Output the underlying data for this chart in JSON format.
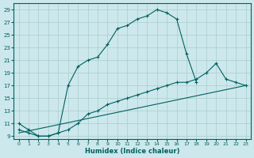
{
  "xlabel": "Humidex (Indice chaleur)",
  "bg_color": "#cce8ec",
  "grid_color": "#aacccc",
  "line_color": "#006060",
  "xlim": [
    -0.5,
    23.5
  ],
  "ylim": [
    8.5,
    30
  ],
  "yticks": [
    9,
    11,
    13,
    15,
    17,
    19,
    21,
    23,
    25,
    27,
    29
  ],
  "xticks": [
    0,
    1,
    2,
    3,
    4,
    5,
    6,
    7,
    8,
    9,
    10,
    11,
    12,
    13,
    14,
    15,
    16,
    17,
    18,
    19,
    20,
    21,
    22,
    23
  ],
  "line1_x": [
    0,
    1,
    2,
    3,
    4,
    5,
    6,
    7,
    8,
    9,
    10,
    11,
    12,
    13,
    14,
    15,
    16,
    17,
    18
  ],
  "line1_y": [
    11,
    10,
    9,
    9,
    9.5,
    17,
    20,
    21,
    21.5,
    23.5,
    26,
    26.5,
    27.5,
    28,
    29,
    28.5,
    27.5,
    22,
    17.5
  ],
  "line2_x": [
    0,
    1,
    2,
    3,
    4,
    5,
    6,
    7,
    8,
    9,
    10,
    11,
    12,
    13,
    14,
    15,
    16,
    17,
    18,
    19,
    20,
    21,
    22,
    23
  ],
  "line2_y": [
    10,
    9.5,
    9,
    9,
    9.5,
    10,
    11,
    12.5,
    13,
    14,
    14.5,
    15,
    15.5,
    16,
    16.5,
    17,
    17.5,
    17.5,
    18,
    19,
    20.5,
    18,
    17.5,
    17
  ],
  "line3_x": [
    0,
    23
  ],
  "line3_y": [
    9.5,
    17
  ]
}
